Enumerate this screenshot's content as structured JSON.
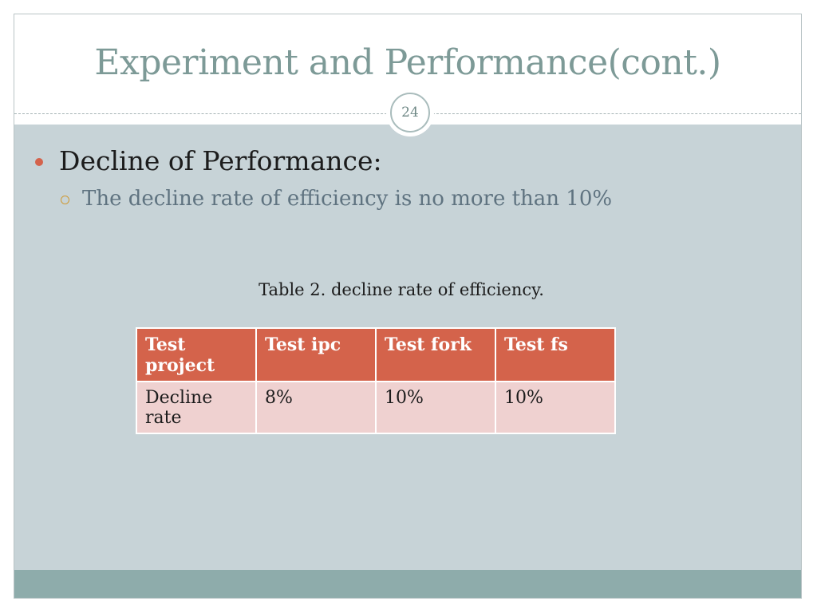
{
  "slide": {
    "title": "Experiment and Performance(cont.)",
    "page_number": "24",
    "bullets": [
      {
        "text": "Decline of Performance:"
      },
      {
        "text": "The decline rate of efficiency is no more than 10%"
      }
    ],
    "table_caption": "Table 2. decline rate of efficiency.",
    "table": {
      "headers": [
        "Test project",
        "Test ipc",
        "Test fork",
        "Test fs"
      ],
      "rows": [
        [
          "Decline rate",
          "8%",
          "10%",
          "10%"
        ]
      ]
    },
    "colors": {
      "title": "#7d9a97",
      "content_bg": "#c7d3d7",
      "footer_bar": "#8eacab",
      "table_header": "#d4634b",
      "table_row": "#efd1d0",
      "bullet_dot": "#d4634c",
      "sub_bullet_ring": "#cf9a34"
    }
  }
}
